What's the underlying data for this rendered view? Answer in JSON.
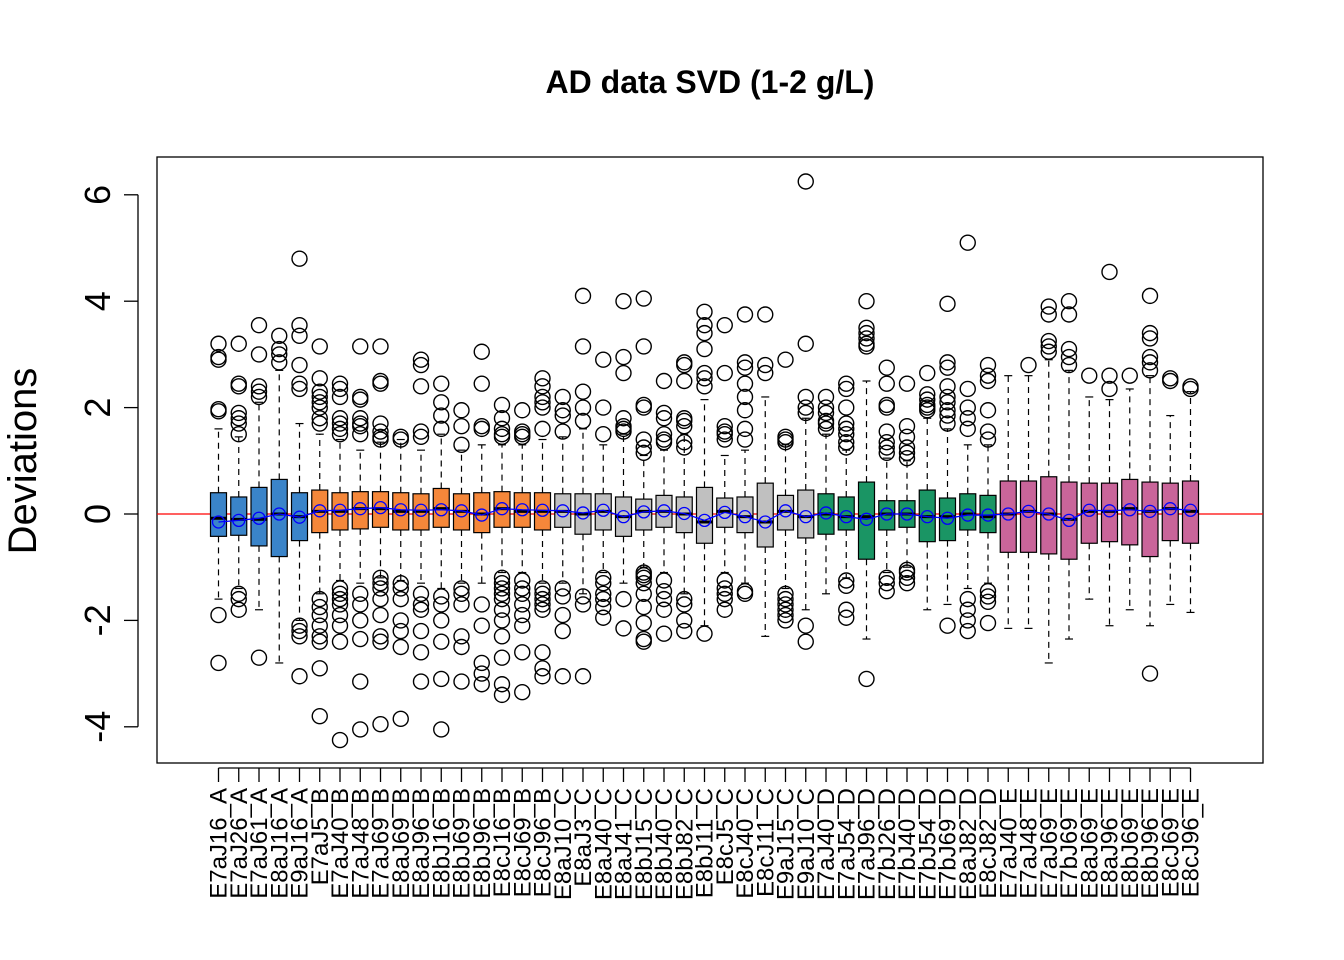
{
  "chart_data": {
    "type": "box",
    "title": "AD data SVD (1-2 g/L)",
    "xlabel": "",
    "ylabel": "Deviations",
    "ylim": [
      -4.6,
      6.7
    ],
    "yticks": [
      -4,
      -2,
      0,
      2,
      4,
      6
    ],
    "reference_line": {
      "y": 0,
      "color": "#ff0000"
    },
    "mean_marker_color": "#0000ff",
    "group_colors": {
      "A": "#3a84c9",
      "B": "#f5873a",
      "C": "#c0c0c0",
      "D": "#1a9564",
      "E": "#c9659a"
    },
    "boxes": [
      {
        "label": "E7aJ16_A",
        "group": "A",
        "q1": -0.42,
        "med": -0.08,
        "q3": 0.4,
        "lo": -1.6,
        "hi": 1.6,
        "mean": -0.15,
        "out": [
          3.2,
          2.95,
          2.9,
          1.97,
          1.93,
          -1.9,
          -2.8
        ]
      },
      {
        "label": "E7aJ26_A",
        "group": "A",
        "q1": -0.4,
        "med": -0.1,
        "q3": 0.32,
        "lo": -1.4,
        "hi": 1.45,
        "mean": -0.12,
        "out": [
          3.2,
          2.45,
          2.4,
          1.9,
          1.8,
          1.7,
          1.5,
          -1.5,
          -1.6,
          -1.8
        ]
      },
      {
        "label": "E7aJ61_A",
        "group": "A",
        "q1": -0.6,
        "med": -0.1,
        "q3": 0.5,
        "lo": -1.8,
        "hi": 2.1,
        "mean": -0.08,
        "out": [
          3.55,
          3.0,
          2.4,
          2.3,
          2.2,
          -2.7
        ]
      },
      {
        "label": "E8aJ16_A",
        "group": "A",
        "q1": -0.8,
        "med": 0.0,
        "q3": 0.65,
        "lo": -2.8,
        "hi": 2.7,
        "mean": 0.0,
        "out": [
          3.35,
          3.1,
          3.0,
          2.85
        ]
      },
      {
        "label": "E9aJ16_A",
        "group": "A",
        "q1": -0.5,
        "med": -0.05,
        "q3": 0.4,
        "lo": -2.0,
        "hi": 1.7,
        "mean": -0.06,
        "out": [
          4.8,
          3.55,
          3.35,
          2.8,
          2.45,
          2.35,
          -2.1,
          -2.2,
          -2.3,
          -3.05
        ]
      },
      {
        "label": "E7aJ5_B",
        "group": "B",
        "q1": -0.35,
        "med": 0.05,
        "q3": 0.45,
        "lo": -1.5,
        "hi": 1.5,
        "mean": 0.06,
        "out": [
          3.15,
          2.55,
          2.3,
          2.2,
          2.1,
          2.0,
          1.8,
          1.7,
          -1.6,
          -1.75,
          -1.9,
          -2.1,
          -2.3,
          -2.4,
          -2.9,
          -3.8
        ]
      },
      {
        "label": "E7aJ40_B",
        "group": "B",
        "q1": -0.3,
        "med": 0.05,
        "q3": 0.4,
        "lo": -1.25,
        "hi": 1.4,
        "mean": 0.07,
        "out": [
          2.45,
          2.35,
          2.2,
          1.8,
          1.7,
          1.6,
          1.5,
          -1.4,
          -1.5,
          -1.6,
          -1.7,
          -1.9,
          -2.1,
          -2.4,
          -4.25
        ]
      },
      {
        "label": "E7aJ48_B",
        "group": "B",
        "q1": -0.28,
        "med": 0.1,
        "q3": 0.42,
        "lo": -1.3,
        "hi": 1.2,
        "mean": 0.1,
        "out": [
          3.15,
          2.2,
          2.15,
          1.8,
          1.7,
          1.65,
          1.5,
          -1.5,
          -1.7,
          -2.0,
          -2.35,
          -3.15,
          -4.05
        ]
      },
      {
        "label": "E7aJ69_B",
        "group": "B",
        "q1": -0.25,
        "med": 0.1,
        "q3": 0.42,
        "lo": -1.2,
        "hi": 1.35,
        "mean": 0.12,
        "out": [
          3.15,
          2.5,
          2.45,
          1.7,
          1.55,
          1.45,
          1.4,
          -1.2,
          -1.3,
          -1.4,
          -1.6,
          -1.9,
          -2.3,
          -2.4,
          -3.95
        ]
      },
      {
        "label": "E8aJ69_B",
        "group": "B",
        "q1": -0.3,
        "med": 0.05,
        "q3": 0.4,
        "lo": -1.25,
        "hi": 1.4,
        "mean": 0.08,
        "out": [
          1.45,
          1.4,
          -1.3,
          -1.4,
          -1.6,
          -2.0,
          -2.2,
          -2.5,
          -3.85
        ]
      },
      {
        "label": "E8aJ96_B",
        "group": "B",
        "q1": -0.3,
        "med": 0.05,
        "q3": 0.38,
        "lo": -1.3,
        "hi": 1.2,
        "mean": 0.07,
        "out": [
          2.9,
          2.8,
          2.4,
          1.55,
          1.45,
          -1.5,
          -1.7,
          -1.8,
          -2.2,
          -2.6,
          -3.15
        ]
      },
      {
        "label": "E8bJ16_B",
        "group": "B",
        "q1": -0.25,
        "med": 0.1,
        "q3": 0.48,
        "lo": -1.4,
        "hi": 1.5,
        "mean": 0.08,
        "out": [
          2.45,
          2.1,
          1.85,
          1.6,
          -1.55,
          -1.7,
          -2.0,
          -2.4,
          -3.1,
          -4.05
        ]
      },
      {
        "label": "E8bJ69_B",
        "group": "B",
        "q1": -0.3,
        "med": 0.05,
        "q3": 0.38,
        "lo": -1.3,
        "hi": 1.2,
        "mean": 0.06,
        "out": [
          1.95,
          1.65,
          1.3,
          -1.4,
          -1.5,
          -1.7,
          -2.3,
          -2.5,
          -3.15
        ]
      },
      {
        "label": "E8bJ96_B",
        "group": "B",
        "q1": -0.35,
        "med": 0.0,
        "q3": 0.4,
        "lo": -1.3,
        "hi": 1.3,
        "mean": -0.02,
        "out": [
          3.05,
          2.45,
          1.65,
          1.6,
          -1.7,
          -2.1,
          -2.8,
          -3.0,
          -3.2
        ]
      },
      {
        "label": "E8cJ16_B",
        "group": "B",
        "q1": -0.25,
        "med": 0.1,
        "q3": 0.42,
        "lo": -1.1,
        "hi": 1.3,
        "mean": 0.1,
        "out": [
          2.05,
          1.8,
          1.6,
          1.5,
          1.45,
          -1.2,
          -1.3,
          -1.4,
          -1.5,
          -1.6,
          -1.8,
          -2.0,
          -2.3,
          -2.7,
          -3.2,
          -3.4
        ]
      },
      {
        "label": "E8cJ69_B",
        "group": "B",
        "q1": -0.25,
        "med": 0.05,
        "q3": 0.4,
        "lo": -1.1,
        "hi": 1.3,
        "mean": 0.08,
        "out": [
          1.95,
          1.55,
          1.5,
          1.45,
          -1.25,
          -1.4,
          -1.5,
          -1.7,
          -1.9,
          -2.1,
          -2.6,
          -3.35
        ]
      },
      {
        "label": "E8cJ96_B",
        "group": "B",
        "q1": -0.3,
        "med": 0.05,
        "q3": 0.4,
        "lo": -1.3,
        "hi": 1.4,
        "mean": 0.07,
        "out": [
          2.55,
          2.4,
          2.2,
          2.1,
          2.0,
          1.6,
          -1.4,
          -1.5,
          -1.6,
          -1.7,
          -1.8,
          -2.6,
          -2.9,
          -3.05
        ]
      },
      {
        "label": "E8aJ10_C",
        "group": "C",
        "q1": -0.25,
        "med": 0.05,
        "q3": 0.38,
        "lo": -1.3,
        "hi": 1.45,
        "mean": 0.06,
        "out": [
          2.2,
          1.95,
          1.85,
          1.55,
          -1.4,
          -1.55,
          -1.9,
          -2.2,
          -3.05
        ]
      },
      {
        "label": "E8aJ3_C",
        "group": "C",
        "q1": -0.38,
        "med": 0.0,
        "q3": 0.38,
        "lo": -1.5,
        "hi": 1.6,
        "mean": 0.02,
        "out": [
          4.1,
          3.15,
          2.3,
          2.0,
          1.75,
          -1.55,
          -1.7,
          -3.05
        ]
      },
      {
        "label": "E8aJ40_C",
        "group": "C",
        "q1": -0.3,
        "med": 0.05,
        "q3": 0.38,
        "lo": -1.1,
        "hi": 1.3,
        "mean": 0.07,
        "out": [
          2.9,
          2.0,
          1.5,
          -1.2,
          -1.3,
          -1.5,
          -1.6,
          -1.75,
          -1.95
        ]
      },
      {
        "label": "E8aJ41_C",
        "group": "C",
        "q1": -0.42,
        "med": -0.05,
        "q3": 0.32,
        "lo": -1.3,
        "hi": 1.5,
        "mean": -0.05,
        "out": [
          4.0,
          2.95,
          2.65,
          1.8,
          1.65,
          1.6,
          1.55,
          -1.6,
          -2.15
        ]
      },
      {
        "label": "E8bJ15_C",
        "group": "C",
        "q1": -0.3,
        "med": 0.05,
        "q3": 0.28,
        "lo": -1.0,
        "hi": 1.1,
        "mean": 0.04,
        "out": [
          4.05,
          3.15,
          2.05,
          2.0,
          1.4,
          1.25,
          1.15,
          -1.1,
          -1.15,
          -1.2,
          -1.3,
          -1.5,
          -1.75,
          -2.05,
          -2.35,
          -2.4
        ]
      },
      {
        "label": "E8bJ40_C",
        "group": "C",
        "q1": -0.25,
        "med": 0.05,
        "q3": 0.35,
        "lo": -1.1,
        "hi": 1.2,
        "mean": 0.06,
        "out": [
          2.5,
          1.9,
          1.8,
          1.5,
          1.4,
          1.35,
          -1.25,
          -1.45,
          -1.6,
          -1.8,
          -2.25
        ]
      },
      {
        "label": "E8bJ82_C",
        "group": "C",
        "q1": -0.35,
        "med": 0.0,
        "q3": 0.32,
        "lo": -1.5,
        "hi": 1.5,
        "mean": 0.01,
        "out": [
          2.85,
          2.8,
          2.5,
          1.8,
          1.75,
          1.65,
          1.35,
          1.25,
          -1.6,
          -1.7,
          -2.0,
          -2.2
        ]
      },
      {
        "label": "E8bJ11_C",
        "group": "C",
        "q1": -0.55,
        "med": -0.15,
        "q3": 0.5,
        "lo": -2.1,
        "hi": 2.15,
        "mean": -0.12,
        "out": [
          3.8,
          3.55,
          3.4,
          3.1,
          2.65,
          2.55,
          2.4,
          -2.25
        ]
      },
      {
        "label": "E8cJ5_C",
        "group": "C",
        "q1": -0.25,
        "med": 0.05,
        "q3": 0.3,
        "lo": -1.1,
        "hi": 1.1,
        "mean": 0.03,
        "out": [
          3.55,
          2.65,
          1.65,
          1.55,
          1.5,
          1.4,
          -1.25,
          -1.4,
          -1.5,
          -1.6,
          -1.8
        ]
      },
      {
        "label": "E8cJ40_C",
        "group": "C",
        "q1": -0.35,
        "med": -0.05,
        "q3": 0.32,
        "lo": -1.3,
        "hi": 1.2,
        "mean": -0.05,
        "out": [
          3.75,
          2.85,
          2.75,
          2.45,
          2.2,
          1.95,
          1.6,
          1.4,
          -1.45,
          -1.5
        ]
      },
      {
        "label": "E8cJ11_C",
        "group": "C",
        "q1": -0.62,
        "med": -0.15,
        "q3": 0.58,
        "lo": -2.3,
        "hi": 2.2,
        "mean": -0.15,
        "out": [
          3.75,
          2.8,
          2.65
        ]
      },
      {
        "label": "E9aJ15_C",
        "group": "C",
        "q1": -0.3,
        "med": 0.05,
        "q3": 0.35,
        "lo": -1.4,
        "hi": 1.3,
        "mean": 0.06,
        "out": [
          2.9,
          1.45,
          1.4,
          1.35,
          -1.5,
          -1.6,
          -1.7,
          -1.8,
          -1.9,
          -2.0
        ]
      },
      {
        "label": "E9aJ10_C",
        "group": "C",
        "q1": -0.45,
        "med": -0.05,
        "q3": 0.45,
        "lo": -1.8,
        "hi": 1.8,
        "mean": -0.05,
        "out": [
          6.25,
          3.2,
          2.2,
          2.0,
          1.9,
          -2.1,
          -2.4
        ]
      },
      {
        "label": "E7aJ40_D",
        "group": "D",
        "q1": -0.38,
        "med": 0.0,
        "q3": 0.38,
        "lo": -1.5,
        "hi": 1.5,
        "mean": 0.02,
        "out": [
          2.2,
          2.0,
          1.9,
          1.75,
          1.7,
          1.6
        ]
      },
      {
        "label": "E7aJ54_D",
        "group": "D",
        "q1": -0.3,
        "med": -0.05,
        "q3": 0.32,
        "lo": -1.2,
        "hi": 1.2,
        "mean": -0.05,
        "out": [
          2.45,
          2.35,
          2.0,
          1.7,
          1.6,
          1.5,
          1.35,
          1.25,
          -1.25,
          -1.35,
          -1.8,
          -1.95
        ]
      },
      {
        "label": "E7aJ96_D",
        "group": "D",
        "q1": -0.85,
        "med": -0.05,
        "q3": 0.6,
        "lo": -2.35,
        "hi": 2.5,
        "mean": -0.1,
        "out": [
          4.0,
          3.5,
          3.4,
          3.3,
          3.2,
          3.15,
          -3.1
        ]
      },
      {
        "label": "E7bJ26_D",
        "group": "D",
        "q1": -0.3,
        "med": 0.0,
        "q3": 0.25,
        "lo": -1.1,
        "hi": 1.05,
        "mean": 0.0,
        "out": [
          2.75,
          2.45,
          2.05,
          2.0,
          1.55,
          1.35,
          1.25,
          1.15,
          -1.2,
          -1.3,
          -1.45
        ]
      },
      {
        "label": "E7bJ40_D",
        "group": "D",
        "q1": -0.25,
        "med": 0.0,
        "q3": 0.25,
        "lo": -1.0,
        "hi": 1.0,
        "mean": 0.0,
        "out": [
          2.45,
          1.65,
          1.45,
          1.25,
          1.15,
          1.05,
          -1.05,
          -1.1,
          -1.2,
          -1.3
        ]
      },
      {
        "label": "E7bJ54_D",
        "group": "D",
        "q1": -0.52,
        "med": -0.05,
        "q3": 0.45,
        "lo": -1.8,
        "hi": 1.8,
        "mean": -0.05,
        "out": [
          2.65,
          2.25,
          2.15,
          2.05,
          2.0,
          1.95
        ]
      },
      {
        "label": "E7bJ69_D",
        "group": "D",
        "q1": -0.5,
        "med": -0.05,
        "q3": 0.3,
        "lo": -1.7,
        "hi": 1.6,
        "mean": -0.08,
        "out": [
          3.95,
          2.85,
          2.75,
          2.4,
          2.2,
          2.1,
          1.95,
          1.85,
          1.7,
          -2.1
        ]
      },
      {
        "label": "E8aJ82_D",
        "group": "D",
        "q1": -0.3,
        "med": 0.0,
        "q3": 0.38,
        "lo": -1.4,
        "hi": 1.3,
        "mean": -0.02,
        "out": [
          5.1,
          2.35,
          2.0,
          1.8,
          1.6,
          -1.6,
          -1.8,
          -2.0,
          -2.2
        ]
      },
      {
        "label": "E8cJ82_D",
        "group": "D",
        "q1": -0.35,
        "med": -0.05,
        "q3": 0.35,
        "lo": -1.3,
        "hi": 1.3,
        "mean": -0.02,
        "out": [
          2.8,
          2.6,
          2.5,
          1.95,
          1.55,
          1.4,
          -1.45,
          -1.55,
          -1.65,
          -2.05
        ]
      },
      {
        "label": "E7aJ40_E",
        "group": "E",
        "q1": -0.72,
        "med": 0.0,
        "q3": 0.62,
        "lo": -2.15,
        "hi": 2.6,
        "mean": 0.0,
        "out": []
      },
      {
        "label": "E7aJ48_E",
        "group": "E",
        "q1": -0.72,
        "med": 0.05,
        "q3": 0.62,
        "lo": -2.15,
        "hi": 2.6,
        "mean": 0.05,
        "out": [
          2.8
        ]
      },
      {
        "label": "E7aJ69_E",
        "group": "E",
        "q1": -0.75,
        "med": 0.0,
        "q3": 0.7,
        "lo": -2.8,
        "hi": 2.9,
        "mean": 0.0,
        "out": [
          3.9,
          3.75,
          3.25,
          3.15,
          3.05
        ]
      },
      {
        "label": "E7bJ69_E",
        "group": "E",
        "q1": -0.85,
        "med": -0.1,
        "q3": 0.6,
        "lo": -2.35,
        "hi": 2.7,
        "mean": -0.12,
        "out": [
          4.0,
          3.75,
          3.1,
          2.95,
          2.8
        ]
      },
      {
        "label": "E8aJ69_E",
        "group": "E",
        "q1": -0.55,
        "med": 0.05,
        "q3": 0.58,
        "lo": -1.6,
        "hi": 2.2,
        "mean": 0.07,
        "out": [
          2.6
        ]
      },
      {
        "label": "E8aJ96_E",
        "group": "E",
        "q1": -0.52,
        "med": 0.05,
        "q3": 0.58,
        "lo": -2.1,
        "hi": 2.15,
        "mean": 0.06,
        "out": [
          4.55,
          2.6,
          2.35
        ]
      },
      {
        "label": "E8bJ69_E",
        "group": "E",
        "q1": -0.58,
        "med": 0.1,
        "q3": 0.65,
        "lo": -1.8,
        "hi": 2.35,
        "mean": 0.08,
        "out": [
          2.6
        ]
      },
      {
        "label": "E8bJ96_E",
        "group": "E",
        "q1": -0.8,
        "med": 0.05,
        "q3": 0.6,
        "lo": -2.1,
        "hi": 2.6,
        "mean": 0.05,
        "out": [
          4.1,
          3.4,
          3.3,
          2.95,
          2.85,
          2.7,
          -3.0
        ]
      },
      {
        "label": "E8cJ69_E",
        "group": "E",
        "q1": -0.5,
        "med": 0.1,
        "q3": 0.58,
        "lo": -1.7,
        "hi": 1.85,
        "mean": 0.1,
        "out": [
          2.55,
          2.5
        ]
      },
      {
        "label": "E8cJ96_E",
        "group": "E",
        "q1": -0.55,
        "med": 0.05,
        "q3": 0.62,
        "lo": -1.85,
        "hi": 2.3,
        "mean": 0.07,
        "out": [
          2.4,
          2.35
        ]
      }
    ]
  }
}
